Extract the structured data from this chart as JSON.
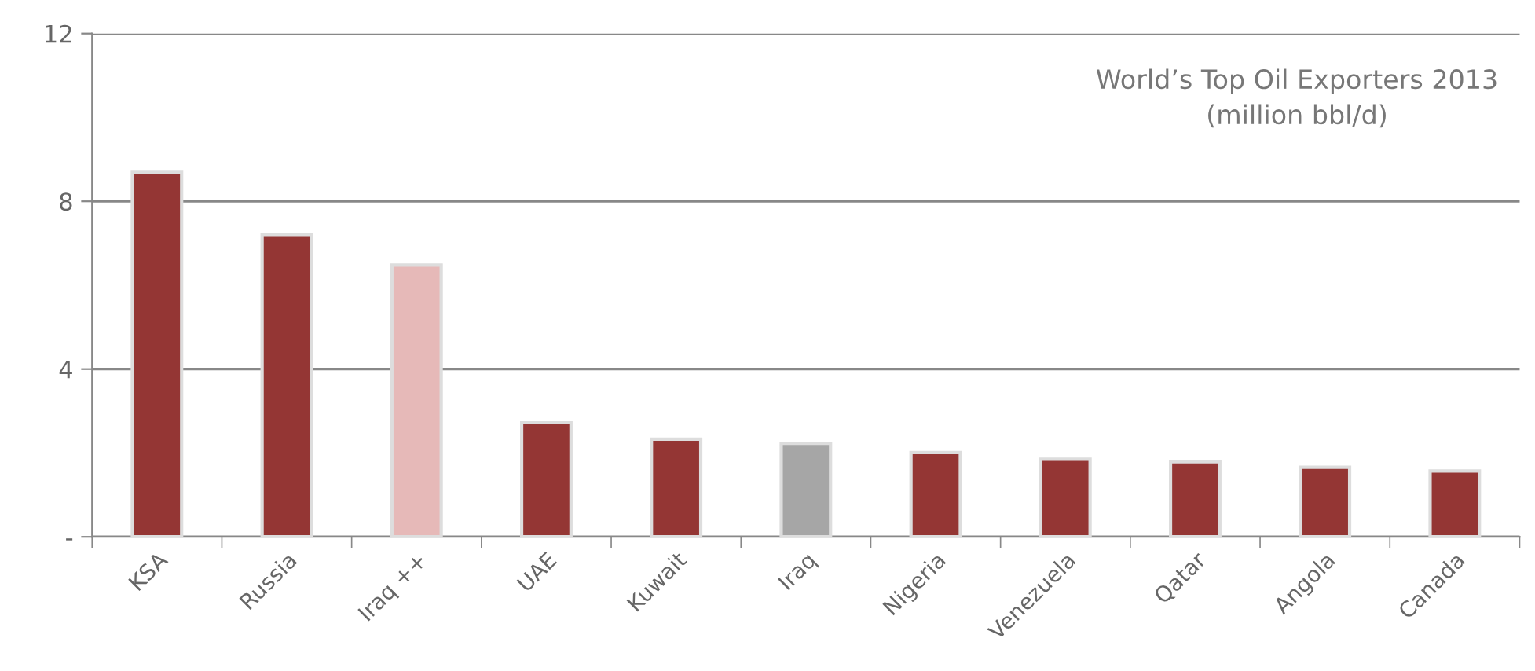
{
  "chart_data": {
    "type": "bar",
    "title": "World’s Top Oil Exporters 2013\n(million bbl/d)",
    "categories": [
      "KSA",
      "Russia",
      "Iraq ++",
      "UAE",
      "Kuwait",
      "Iraq",
      "Nigeria",
      "Venezuela",
      "Qatar",
      "Angola",
      "Canada"
    ],
    "values": [
      8.69,
      7.21,
      6.48,
      2.72,
      2.33,
      2.23,
      2.01,
      1.85,
      1.79,
      1.66,
      1.57
    ],
    "colors": [
      "#943634",
      "#943634",
      "#e6b9b8",
      "#943634",
      "#943634",
      "#a6a6a6",
      "#943634",
      "#943634",
      "#943634",
      "#943634",
      "#943634"
    ],
    "ylim": [
      0,
      12
    ],
    "yticks": [
      {
        "value": 0,
        "label": "-"
      },
      4,
      8,
      12
    ],
    "grid": "y"
  }
}
